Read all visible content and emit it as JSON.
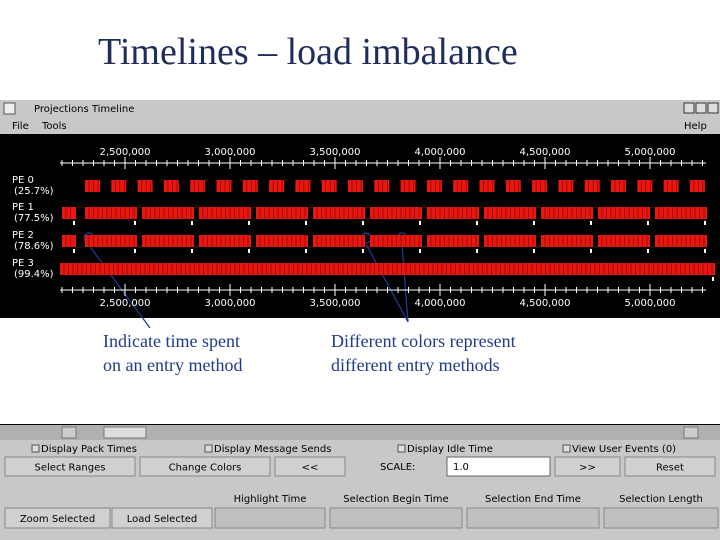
{
  "slide": {
    "title": "Timelines – load imbalance"
  },
  "window": {
    "title": "Projections Timeline",
    "menu": [
      "File",
      "Tools",
      "Help"
    ]
  },
  "timeline": {
    "axis_labels": [
      "2,500,000",
      "3,000,000",
      "3,500,000",
      "4,000,000",
      "4,500,000",
      "5,000,000"
    ],
    "rows": [
      {
        "label": "PE 0",
        "usage": "(25.7%)"
      },
      {
        "label": "PE 1",
        "usage": "(77.5%)"
      },
      {
        "label": "PE 2",
        "usage": "(78.6%)"
      },
      {
        "label": "PE 3",
        "usage": "(99.4%)"
      }
    ]
  },
  "annotations": [
    {
      "lines": [
        "Indicate time spent",
        "on an entry method"
      ]
    },
    {
      "lines": [
        "Different colors represent",
        "different entry methods"
      ]
    }
  ],
  "controls": {
    "checkboxes": [
      "Display Pack Times",
      "Display Message Sends",
      "Display Idle Time",
      "View User Events (0)"
    ],
    "buttons": [
      "Select Ranges",
      "Change Colors",
      "<<",
      ">>",
      "Reset"
    ],
    "scale_label": "SCALE:",
    "scale_value": "1.0",
    "fields": [
      "Highlight Time",
      "Selection Begin Time",
      "Selection End Time",
      "Selection Length"
    ],
    "bottom_buttons": [
      "Zoom Selected",
      "Load Selected"
    ]
  }
}
